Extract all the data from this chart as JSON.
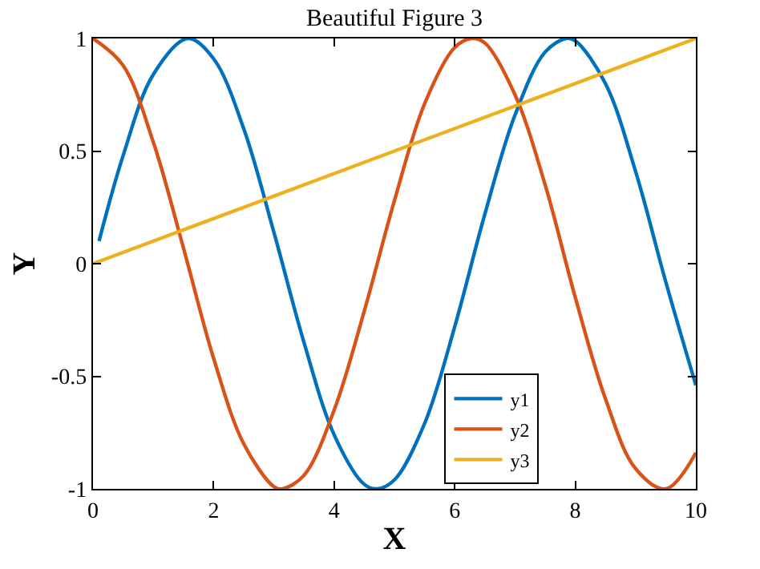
{
  "chart_data": {
    "type": "line",
    "title": "Beautiful Figure 3",
    "xlabel": "X",
    "ylabel": "Y",
    "xlim": [
      0,
      10
    ],
    "xticks": [
      0,
      2,
      4,
      6,
      8,
      10
    ],
    "ylim": [
      -1,
      1
    ],
    "yticks": [
      -1,
      -0.5,
      0,
      0.5,
      1
    ],
    "legend": "bottom right",
    "marker": "none",
    "line_style": "solid",
    "series": [
      {
        "name": "y1",
        "color": "#0072bd",
        "x": [
          0.1,
          0.5,
          1,
          1.57,
          2,
          2.5,
          3,
          3.5,
          4,
          4.5,
          4.71,
          5,
          5.5,
          6,
          6.5,
          7,
          7.5,
          7.85,
          8,
          8.5,
          9,
          9.5,
          10
        ],
        "values": [
          0.1,
          0.48,
          0.84,
          1,
          0.91,
          0.6,
          0.14,
          -0.35,
          -0.76,
          -0.98,
          -1,
          -0.96,
          -0.71,
          -0.28,
          0.22,
          0.66,
          0.94,
          1,
          0.99,
          0.8,
          0.41,
          -0.08,
          -0.54
        ]
      },
      {
        "name": "y2",
        "color": "#d95319",
        "x": [
          0,
          0.5,
          1,
          1.5,
          2,
          2.5,
          3,
          3.14,
          3.5,
          4,
          4.5,
          5,
          5.5,
          6,
          6.28,
          6.5,
          7,
          7.5,
          8,
          8.5,
          9,
          9.5,
          10
        ],
        "values": [
          1,
          0.88,
          0.54,
          0.07,
          -0.42,
          -0.8,
          -0.99,
          -1,
          -0.94,
          -0.65,
          -0.21,
          0.28,
          0.71,
          0.96,
          1,
          0.98,
          0.75,
          0.35,
          -0.15,
          -0.6,
          -0.91,
          -1,
          -0.84
        ]
      },
      {
        "name": "y3",
        "color": "#edb120",
        "x": [
          0,
          10
        ],
        "values": [
          0,
          1
        ]
      }
    ]
  }
}
